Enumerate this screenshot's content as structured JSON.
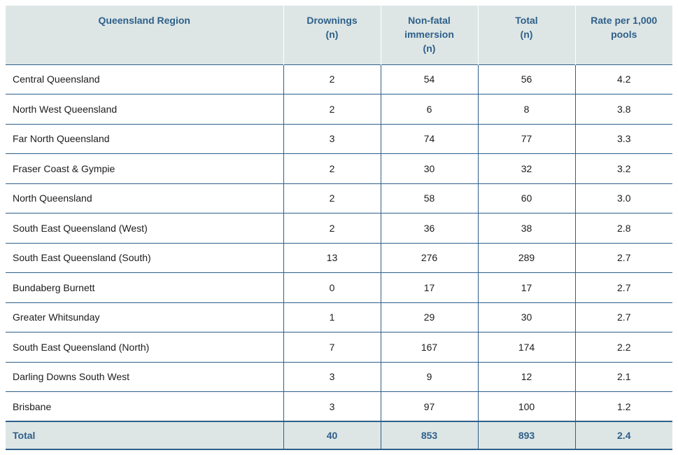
{
  "table": {
    "headers": [
      [
        "Queensland Region"
      ],
      [
        "Drownings",
        "(n)"
      ],
      [
        "Non-fatal",
        "immersion",
        "(n)"
      ],
      [
        "Total",
        "(n)"
      ],
      [
        "Rate per 1,000",
        "pools"
      ]
    ],
    "rows": [
      [
        "Central Queensland",
        "2",
        "54",
        "56",
        "4.2"
      ],
      [
        "North West Queensland",
        "2",
        "6",
        "8",
        "3.8"
      ],
      [
        "Far North Queensland",
        "3",
        "74",
        "77",
        "3.3"
      ],
      [
        "Fraser Coast & Gympie",
        "2",
        "30",
        "32",
        "3.2"
      ],
      [
        "North Queensland",
        "2",
        "58",
        "60",
        "3.0"
      ],
      [
        "South East Queensland (West)",
        "2",
        "36",
        "38",
        "2.8"
      ],
      [
        "South East Queensland (South)",
        "13",
        "276",
        "289",
        "2.7"
      ],
      [
        "Bundaberg Burnett",
        "0",
        "17",
        "17",
        "2.7"
      ],
      [
        "Greater Whitsunday",
        "1",
        "29",
        "30",
        "2.7"
      ],
      [
        "South East Queensland (North)",
        "7",
        "167",
        "174",
        "2.2"
      ],
      [
        "Darling Downs South West",
        "3",
        "9",
        "12",
        "2.1"
      ],
      [
        "Brisbane",
        "3",
        "97",
        "100",
        "1.2"
      ]
    ],
    "total": [
      "Total",
      "40",
      "853",
      "893",
      "2.4"
    ]
  },
  "colors": {
    "header_bg": "#dde6e5",
    "header_text": "#2e5f8a",
    "rule": "#2e5f8a"
  }
}
